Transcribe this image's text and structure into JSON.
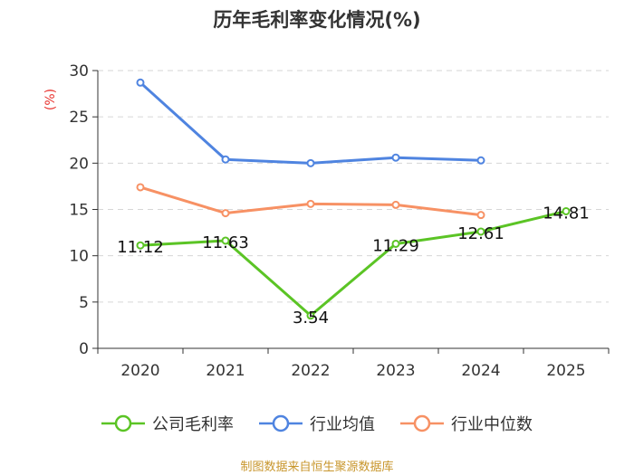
{
  "title": "历年毛利率变化情况(%)",
  "source": "制图数据来自恒生聚源数据库",
  "chart_data": {
    "type": "line",
    "title": "历年毛利率变化情况(%)",
    "ylabel": "(%)",
    "xlabel": "",
    "categories": [
      "2020",
      "2021",
      "2022",
      "2023",
      "2024",
      "2025"
    ],
    "ylim": [
      0,
      30
    ],
    "yticks": [
      0,
      5,
      10,
      15,
      20,
      25,
      30
    ],
    "grid": "horizontal dashed",
    "legend_position": "bottom",
    "series": [
      {
        "name": "公司毛利率",
        "color": "#5bc425",
        "values": [
          11.12,
          11.63,
          3.54,
          11.29,
          12.61,
          14.81
        ],
        "labels": [
          "11.12",
          "11.63",
          "3.54",
          "11.29",
          "12.61",
          "14.81"
        ]
      },
      {
        "name": "行业均值",
        "color": "#4f84e0",
        "values": [
          28.7,
          20.4,
          20.0,
          20.6,
          20.3,
          null
        ]
      },
      {
        "name": "行业中位数",
        "color": "#f79164",
        "values": [
          17.4,
          14.6,
          15.6,
          15.5,
          14.4,
          null
        ]
      }
    ]
  }
}
